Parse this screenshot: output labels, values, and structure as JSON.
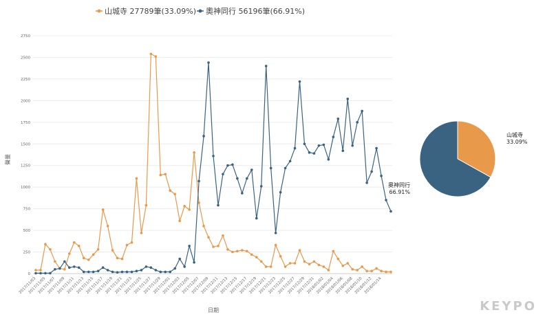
{
  "chart_data": [
    {
      "type": "line",
      "title": "",
      "xlabel": "日期",
      "ylabel": "聲量",
      "ylim": [
        0,
        2750
      ],
      "yticks": [
        0,
        250,
        500,
        750,
        1000,
        1250,
        1500,
        1750,
        2000,
        2250,
        2500,
        2750
      ],
      "xtick_labels": [
        "2017/11/03",
        "2017/11/05",
        "2017/11/07",
        "2017/11/09",
        "2017/11/11",
        "2017/11/13",
        "2017/11/15",
        "2017/11/17",
        "2017/11/19",
        "2017/11/21",
        "2017/11/23",
        "2017/11/25",
        "2017/11/27",
        "2017/11/29",
        "2017/12/01",
        "2017/12/03",
        "2017/12/05",
        "2017/12/07",
        "2017/12/09",
        "2017/12/11",
        "2017/12/13",
        "2017/12/15",
        "2017/12/17",
        "2017/12/19",
        "2017/12/21",
        "2017/12/23",
        "2017/12/25",
        "2017/12/27",
        "2017/12/29",
        "2017/12/31",
        "2018/01/02",
        "2018/01/04",
        "2018/01/06",
        "2018/01/08",
        "2018/01/10",
        "2018/01/12",
        "2018/01/14"
      ],
      "series": [
        {
          "name": "山城寺 27789筆(33.09%)",
          "color": "#e8994a",
          "values": [
            40,
            40,
            340,
            280,
            140,
            60,
            50,
            230,
            360,
            320,
            180,
            160,
            220,
            280,
            740,
            550,
            270,
            180,
            170,
            330,
            360,
            1100,
            470,
            790,
            2540,
            2510,
            1140,
            1150,
            960,
            920,
            610,
            780,
            740,
            1400,
            820,
            550,
            420,
            310,
            320,
            440,
            280,
            250,
            260,
            270,
            260,
            220,
            190,
            140,
            80,
            80,
            330,
            200,
            80,
            120,
            120,
            270,
            140,
            110,
            140,
            100,
            80,
            40,
            260,
            170,
            90,
            120,
            50,
            40,
            80,
            30,
            30,
            60,
            30,
            20,
            20
          ]
        },
        {
          "name": "奧神同行 56196筆(66.91%)",
          "color": "#3a6382",
          "values": [
            5,
            5,
            5,
            5,
            50,
            60,
            140,
            70,
            80,
            70,
            20,
            20,
            20,
            30,
            70,
            40,
            20,
            15,
            20,
            20,
            20,
            30,
            40,
            80,
            70,
            40,
            20,
            20,
            20,
            60,
            170,
            80,
            320,
            130,
            1070,
            1590,
            2440,
            1360,
            790,
            1150,
            1250,
            1260,
            1100,
            930,
            1100,
            1200,
            640,
            1010,
            2400,
            1220,
            470,
            940,
            1220,
            1300,
            1450,
            2220,
            1500,
            1400,
            1390,
            1480,
            1490,
            1320,
            1580,
            1790,
            1420,
            2020,
            1480,
            1750,
            1880,
            1050,
            1180,
            1450,
            1130,
            850,
            720
          ]
        }
      ]
    },
    {
      "type": "pie",
      "slices": [
        {
          "label": "山城寺",
          "percent_label": "33.09%",
          "value": 33.09,
          "color": "#e8994a"
        },
        {
          "label": "奧神同行",
          "percent_label": "66.91%",
          "value": 66.91,
          "color": "#3a6382"
        }
      ]
    }
  ],
  "branding": {
    "logo": "KEYPO"
  }
}
